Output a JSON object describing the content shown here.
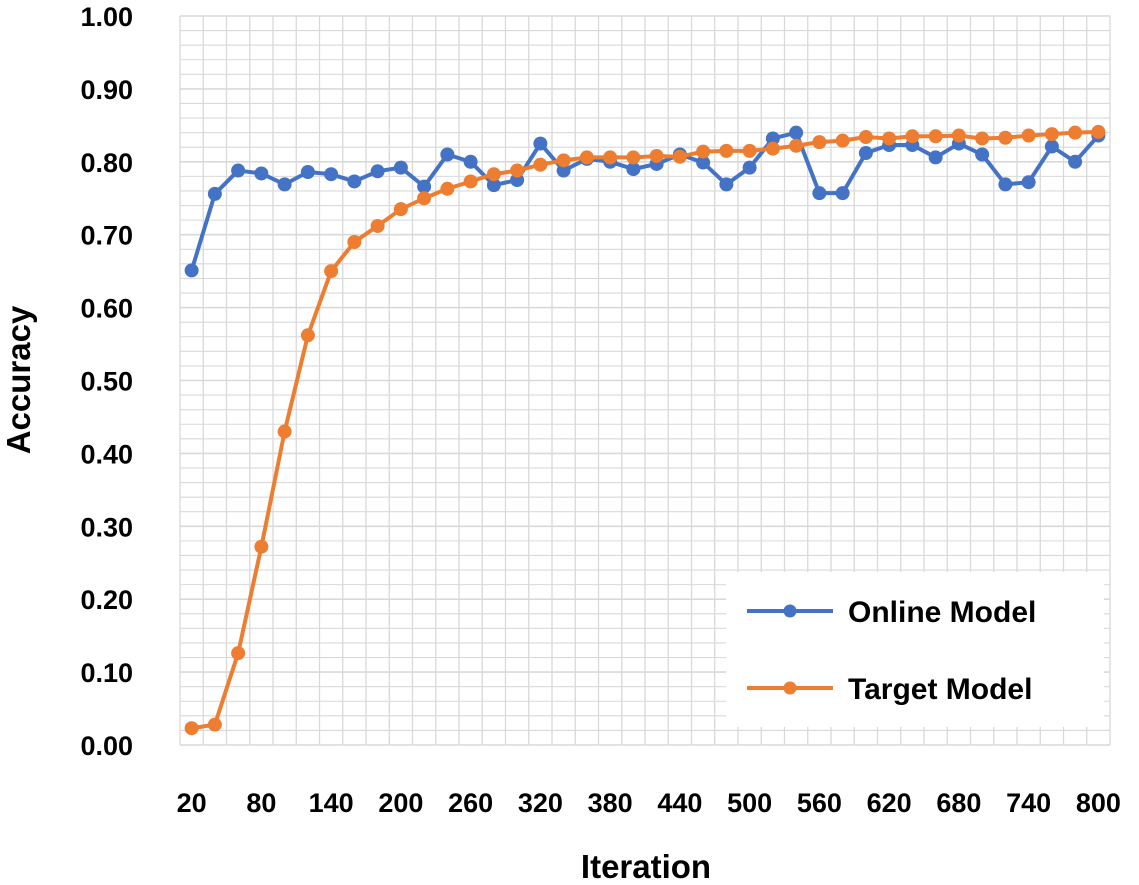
{
  "chart_data": {
    "type": "line",
    "title": "",
    "xlabel": "Iteration",
    "ylabel": "Accuracy",
    "x": [
      20,
      40,
      60,
      80,
      100,
      120,
      140,
      160,
      180,
      200,
      220,
      240,
      260,
      280,
      300,
      320,
      340,
      360,
      380,
      400,
      420,
      440,
      460,
      480,
      500,
      520,
      540,
      560,
      580,
      600,
      620,
      640,
      660,
      680,
      700,
      720,
      740,
      760,
      780,
      800
    ],
    "x_tick_labels": [
      "20",
      "80",
      "140",
      "200",
      "260",
      "320",
      "380",
      "440",
      "500",
      "560",
      "620",
      "680",
      "740",
      "800"
    ],
    "y_tick_labels": [
      "0.00",
      "0.10",
      "0.20",
      "0.30",
      "0.40",
      "0.50",
      "0.60",
      "0.70",
      "0.80",
      "0.90",
      "1.00"
    ],
    "ylim": [
      0,
      1
    ],
    "grid": true,
    "legend_position": "bottom-right",
    "series": [
      {
        "name": "Online Model",
        "color": "#4472C4",
        "values": [
          0.651,
          0.756,
          0.788,
          0.784,
          0.769,
          0.786,
          0.783,
          0.773,
          0.787,
          0.792,
          0.766,
          0.81,
          0.8,
          0.768,
          0.775,
          0.825,
          0.788,
          0.804,
          0.8,
          0.79,
          0.797,
          0.81,
          0.799,
          0.769,
          0.792,
          0.832,
          0.84,
          0.757,
          0.757,
          0.812,
          0.823,
          0.823,
          0.806,
          0.825,
          0.81,
          0.769,
          0.772,
          0.821,
          0.8,
          0.836
        ]
      },
      {
        "name": "Target Model",
        "color": "#ED7D31",
        "values": [
          0.023,
          0.028,
          0.126,
          0.272,
          0.43,
          0.562,
          0.65,
          0.69,
          0.712,
          0.735,
          0.75,
          0.763,
          0.773,
          0.783,
          0.788,
          0.796,
          0.802,
          0.806,
          0.806,
          0.806,
          0.808,
          0.807,
          0.814,
          0.815,
          0.815,
          0.818,
          0.822,
          0.827,
          0.829,
          0.834,
          0.832,
          0.835,
          0.835,
          0.836,
          0.832,
          0.833,
          0.836,
          0.838,
          0.84,
          0.841
        ]
      }
    ]
  }
}
